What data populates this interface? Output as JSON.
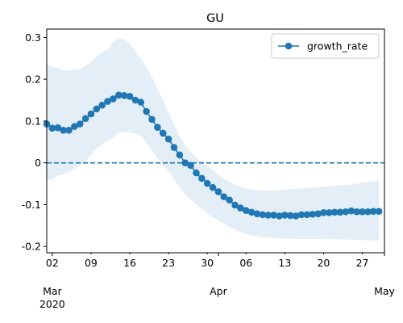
{
  "chart_data": {
    "type": "line",
    "title": "GU",
    "xlabel": "",
    "ylabel": "",
    "x_start": "2020-03-01",
    "x_end": "2020-05-01",
    "xlim": [
      "2020-03-01",
      "2020-05-01"
    ],
    "ylim": [
      -0.215,
      0.32
    ],
    "y_ticks": [
      -0.2,
      -0.1,
      0.0,
      0.1,
      0.2,
      0.3
    ],
    "x_ticks": [
      {
        "date": "2020-03-02",
        "label": "02",
        "month_label": "Mar",
        "year_label": "2020"
      },
      {
        "date": "2020-03-09",
        "label": "09"
      },
      {
        "date": "2020-03-16",
        "label": "16"
      },
      {
        "date": "2020-03-23",
        "label": "23"
      },
      {
        "date": "2020-03-30",
        "label": "30"
      },
      {
        "date": "2020-04-01",
        "label": "",
        "month_label": "Apr"
      },
      {
        "date": "2020-04-06",
        "label": "06"
      },
      {
        "date": "2020-04-13",
        "label": "13"
      },
      {
        "date": "2020-04-20",
        "label": "20"
      },
      {
        "date": "2020-04-27",
        "label": "27"
      },
      {
        "date": "2020-05-01",
        "label": "",
        "month_label": "May"
      }
    ],
    "grid": false,
    "legend": {
      "position": "top-right",
      "entries": [
        "growth_rate"
      ]
    },
    "reference_line": {
      "y": 0.0,
      "style": "dashed",
      "color": "#1f77b4"
    },
    "series": [
      {
        "name": "growth_rate",
        "color": "#1f77b4",
        "marker": "circle",
        "values": [
          0.093,
          0.083,
          0.084,
          0.078,
          0.078,
          0.087,
          0.093,
          0.106,
          0.117,
          0.129,
          0.138,
          0.147,
          0.153,
          0.162,
          0.161,
          0.159,
          0.15,
          0.145,
          0.123,
          0.104,
          0.085,
          0.071,
          0.057,
          0.037,
          0.019,
          0.0,
          -0.006,
          -0.024,
          -0.037,
          -0.049,
          -0.059,
          -0.069,
          -0.081,
          -0.089,
          -0.101,
          -0.108,
          -0.114,
          -0.118,
          -0.122,
          -0.124,
          -0.125,
          -0.125,
          -0.127,
          -0.125,
          -0.126,
          -0.127,
          -0.124,
          -0.124,
          -0.123,
          -0.122,
          -0.119,
          -0.119,
          -0.118,
          -0.118,
          -0.117,
          -0.115,
          -0.117,
          -0.117,
          -0.117,
          -0.116,
          -0.116
        ]
      }
    ],
    "band": {
      "color": "#1f77b4",
      "opacity": 0.12,
      "upper": [
        0.235,
        0.23,
        0.226,
        0.222,
        0.22,
        0.222,
        0.224,
        0.232,
        0.242,
        0.255,
        0.265,
        0.272,
        0.288,
        0.298,
        0.295,
        0.285,
        0.268,
        0.25,
        0.228,
        0.205,
        0.178,
        0.15,
        0.12,
        0.092,
        0.065,
        0.042,
        0.025,
        0.012,
        0.002,
        -0.008,
        -0.018,
        -0.028,
        -0.038,
        -0.045,
        -0.052,
        -0.057,
        -0.061,
        -0.063,
        -0.065,
        -0.066,
        -0.066,
        -0.066,
        -0.065,
        -0.064,
        -0.063,
        -0.062,
        -0.061,
        -0.06,
        -0.059,
        -0.058,
        -0.057,
        -0.056,
        -0.055,
        -0.054,
        -0.053,
        -0.052,
        -0.05,
        -0.048,
        -0.046,
        -0.044,
        -0.041
      ],
      "lower": [
        -0.04,
        -0.04,
        -0.03,
        -0.028,
        -0.022,
        -0.014,
        -0.006,
        0.004,
        0.018,
        0.034,
        0.044,
        0.052,
        0.06,
        0.072,
        0.074,
        0.073,
        0.07,
        0.064,
        0.048,
        0.03,
        0.012,
        -0.006,
        -0.02,
        -0.04,
        -0.058,
        -0.075,
        -0.088,
        -0.1,
        -0.11,
        -0.12,
        -0.13,
        -0.138,
        -0.146,
        -0.153,
        -0.16,
        -0.166,
        -0.17,
        -0.173,
        -0.176,
        -0.178,
        -0.179,
        -0.18,
        -0.181,
        -0.181,
        -0.182,
        -0.182,
        -0.182,
        -0.182,
        -0.182,
        -0.182,
        -0.182,
        -0.182,
        -0.183,
        -0.183,
        -0.183,
        -0.184,
        -0.184,
        -0.185,
        -0.185,
        -0.186,
        -0.187
      ]
    }
  }
}
